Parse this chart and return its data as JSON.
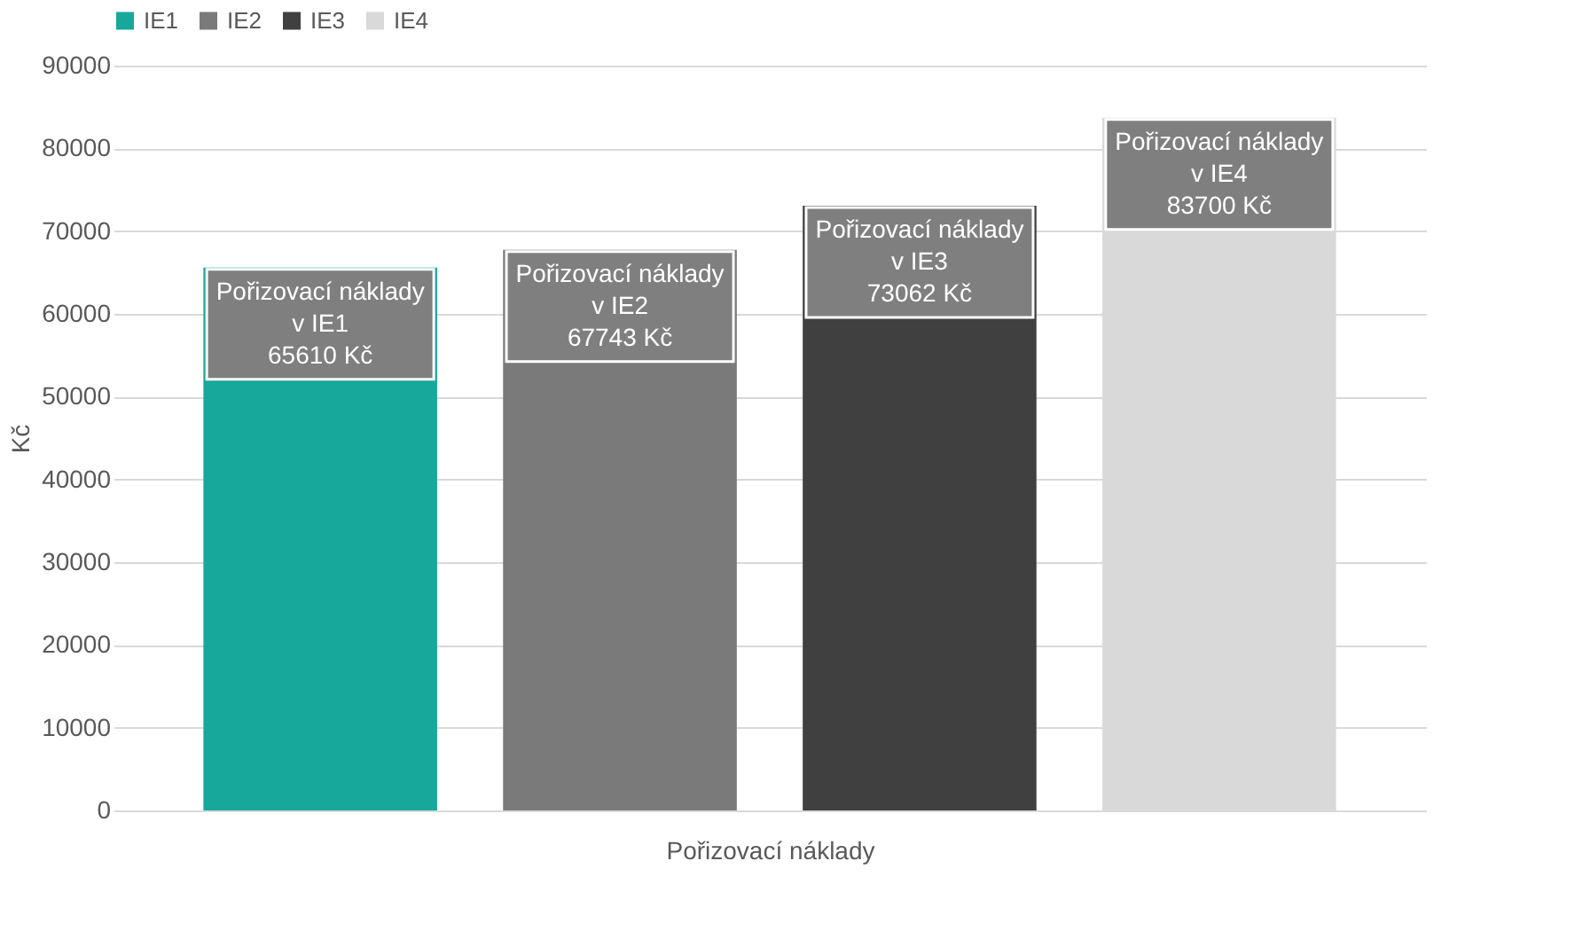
{
  "chart_data": {
    "type": "bar",
    "xlabel": "Pořizovací náklady",
    "ylabel": "Kč",
    "categories": [
      null
    ],
    "series": [
      {
        "name": "IE1",
        "color": "#17a89b",
        "values": [
          65610
        ],
        "value_labels": [
          "Pořizovací náklady\nv IE1\n65610 Kč"
        ]
      },
      {
        "name": "IE2",
        "color": "#7a7a7a",
        "values": [
          67743
        ],
        "value_labels": [
          "Pořizovací náklady\nv IE2\n67743 Kč"
        ]
      },
      {
        "name": "IE3",
        "color": "#404040",
        "values": [
          73062
        ],
        "value_labels": [
          "Pořizovací náklady\nv IE3\n73062 Kč"
        ]
      },
      {
        "name": "IE4",
        "color": "#d9d9d9",
        "values": [
          83700
        ],
        "value_labels": [
          "Pořizovací náklady\nv IE4\n83700 Kč"
        ]
      }
    ],
    "ylim": [
      0,
      90000
    ],
    "yticks": [
      0,
      10000,
      20000,
      30000,
      40000,
      50000,
      60000,
      70000,
      80000,
      90000
    ],
    "grid": "y",
    "legend": "top"
  }
}
